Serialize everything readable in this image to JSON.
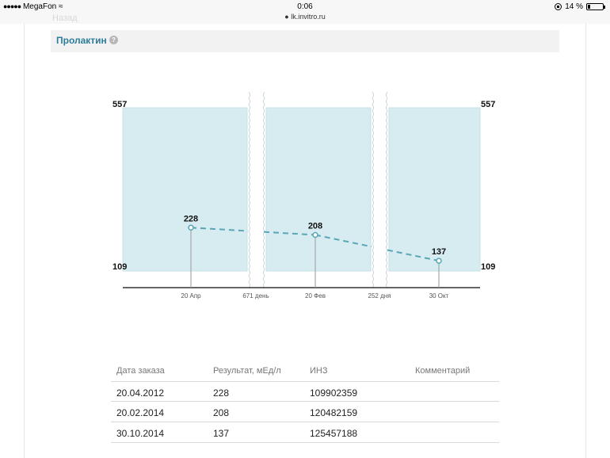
{
  "status_bar": {
    "carrier": "MegaFon",
    "time": "0:06",
    "url": "lk.invitro.ru",
    "battery": "14 %",
    "battery_level": 0.14,
    "signal_icon": "signal-dots-icon",
    "wifi_icon": "wifi-icon",
    "lock_icon": "lock-icon"
  },
  "faded_tab": "Назад",
  "section": {
    "title": "Пролактин",
    "help_icon": "?"
  },
  "chart_data": {
    "type": "line",
    "y_ref_range": [
      109,
      557
    ],
    "y_top_label": "557",
    "y_bottom_label": "109",
    "segments": [
      {
        "x_label": "20 Апр"
      },
      {
        "x_label": "20 Фев"
      },
      {
        "x_label": "30 Окт"
      }
    ],
    "gaps": [
      {
        "label": "671 день"
      },
      {
        "label": "252 дня"
      }
    ],
    "points": [
      {
        "date": "20.04.2012",
        "x_label": "20 Апр",
        "value": 228
      },
      {
        "date": "20.02.2014",
        "x_label": "20 Фев",
        "value": 208
      },
      {
        "date": "30.10.2014",
        "x_label": "30 Окт",
        "value": 137
      }
    ],
    "band_color": "#d7ecf1",
    "line_color": "#5aa6b6"
  },
  "table": {
    "headers": [
      "Дата заказа",
      "Результат, мЕд/л",
      "ИНЗ",
      "Комментарий"
    ],
    "rows": [
      [
        "20.04.2012",
        "228",
        "109902359",
        ""
      ],
      [
        "20.02.2014",
        "208",
        "120482159",
        ""
      ],
      [
        "30.10.2014",
        "137",
        "125457188",
        ""
      ]
    ]
  }
}
